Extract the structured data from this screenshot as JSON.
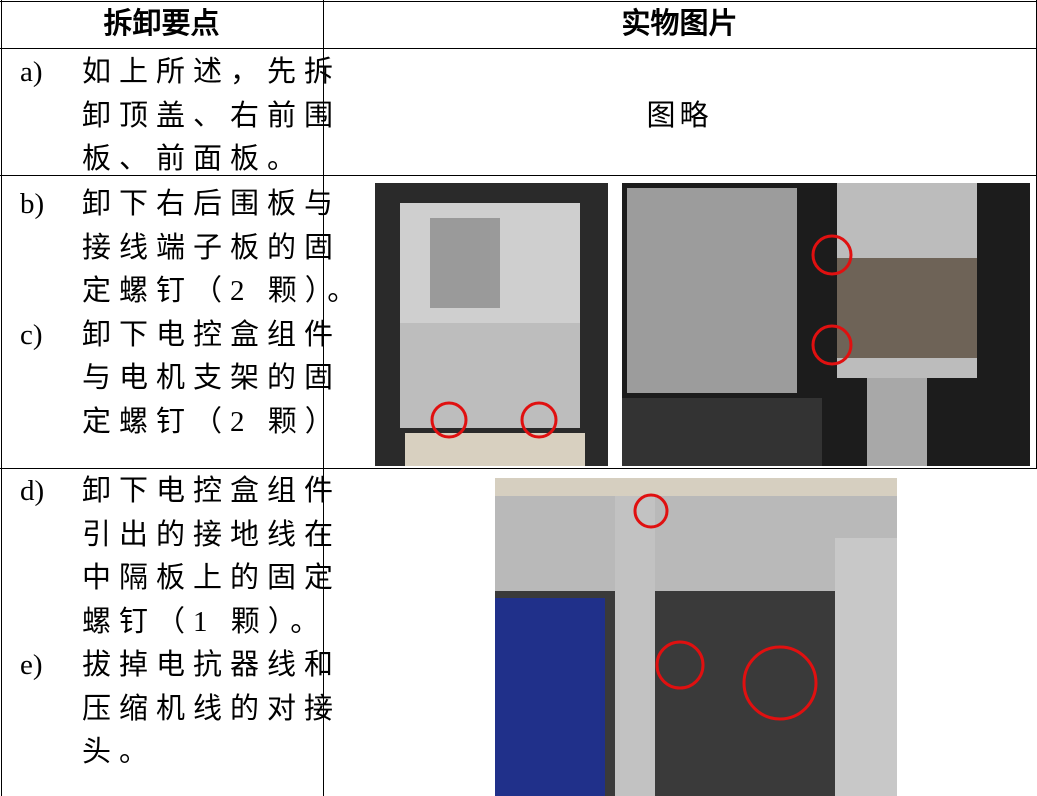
{
  "table": {
    "header": [
      "拆卸要点",
      "实物图片"
    ],
    "rows": [
      {
        "steps": [
          {
            "label": "a)",
            "lines": [
              "如上所述，先拆",
              "卸顶盖、右前围",
              "板、前面板。"
            ]
          }
        ],
        "picture": "图略"
      },
      {
        "steps": [
          {
            "label": "b)",
            "lines": [
              "卸下右后围板与",
              "接线端子板的固",
              "定螺钉（2 颗）。"
            ]
          },
          {
            "label": "c)",
            "lines": [
              "卸下电控盒组件",
              "与电机支架的固",
              "定螺钉（2 颗）"
            ]
          }
        ]
      },
      {
        "steps": [
          {
            "label": "d)",
            "lines": [
              "卸下电控盒组件",
              "引出的接地线在",
              "中隔板上的固定",
              "螺钉（1 颗）。"
            ]
          },
          {
            "label": "e)",
            "lines": [
              "拔掉电抗器线和",
              "压缩机线的对接",
              "头。"
            ]
          }
        ]
      }
    ]
  }
}
